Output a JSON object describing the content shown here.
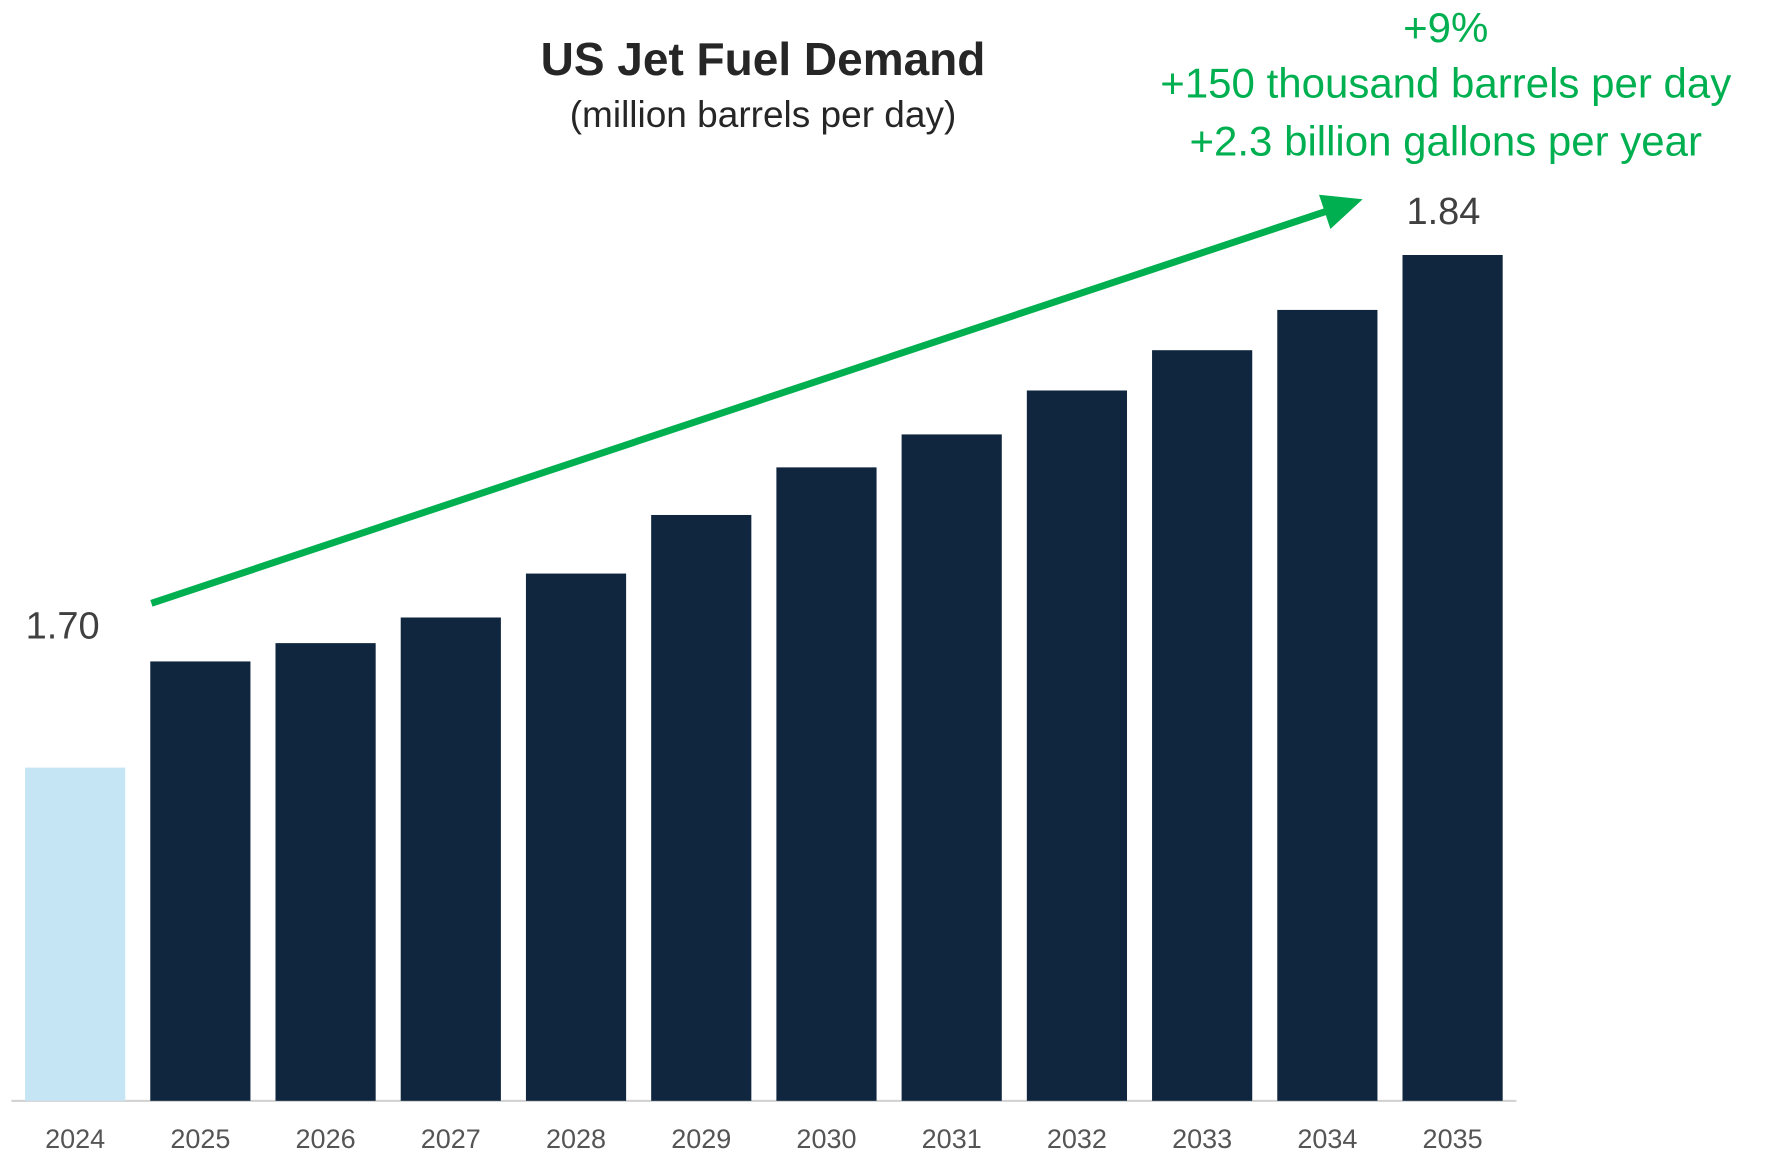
{
  "chart_data": {
    "type": "bar",
    "title": "US Jet Fuel Demand",
    "subtitle": "(million barrels per day)",
    "annotation": [
      "+9%",
      "+150 thousand barrels per day",
      "+2.3 billion gallons per year"
    ],
    "categories": [
      "2024",
      "2025",
      "2026",
      "2027",
      "2028",
      "2029",
      "2030",
      "2031",
      "2032",
      "2033",
      "2034",
      "2035"
    ],
    "values": [
      1.7,
      1.729,
      1.734,
      1.741,
      1.753,
      1.769,
      1.782,
      1.791,
      1.803,
      1.814,
      1.825,
      1.84
    ],
    "value_labels": [
      "1.70",
      null,
      null,
      null,
      null,
      null,
      null,
      null,
      null,
      null,
      null,
      "1.84"
    ],
    "colors": [
      "#c5e5f5",
      "#10263f",
      "#10263f",
      "#10263f",
      "#10263f",
      "#10263f",
      "#10263f",
      "#10263f",
      "#10263f",
      "#10263f",
      "#10263f",
      "#10263f"
    ],
    "annotation_color": "#00b050",
    "ylim": [
      1.609,
      1.84
    ]
  }
}
